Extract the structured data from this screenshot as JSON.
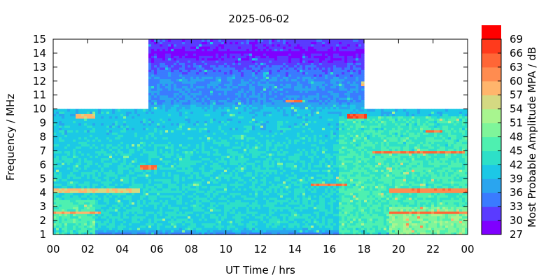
{
  "chart_data": {
    "type": "heatmap",
    "title": "2025-06-02",
    "xlabel": "UT Time / hrs",
    "ylabel": "Frequency / MHz",
    "xlim": [
      0,
      24
    ],
    "ylim": [
      1,
      15
    ],
    "x_ticks": [
      "00",
      "02",
      "04",
      "06",
      "08",
      "10",
      "12",
      "14",
      "16",
      "18",
      "20",
      "22",
      "00"
    ],
    "y_ticks": [
      "1",
      "2",
      "3",
      "4",
      "5",
      "6",
      "7",
      "8",
      "9",
      "10",
      "11",
      "12",
      "13",
      "14",
      "15"
    ],
    "colorbar": {
      "label": "Most Probable Amplitude MPA / dB",
      "ticks": [
        "27",
        "30",
        "33",
        "36",
        "39",
        "42",
        "45",
        "48",
        "51",
        "54",
        "57",
        "60",
        "63",
        "66",
        "69"
      ],
      "range": [
        27,
        69
      ],
      "step": 3,
      "colors": [
        "#7f00ff",
        "#5a3bff",
        "#3a7bff",
        "#2aa5ef",
        "#1cc8e6",
        "#2de0c8",
        "#4ef0b0",
        "#7ff59a",
        "#a8f58f",
        "#d4d982",
        "#ffb56c",
        "#ff8c50",
        "#ff6636",
        "#ff3a1c",
        "#ff0000"
      ]
    },
    "coverage": [
      {
        "x": [
          0,
          5.5
        ],
        "y": [
          1,
          10
        ]
      },
      {
        "x": [
          5.5,
          18
        ],
        "y": [
          1,
          15
        ]
      },
      {
        "x": [
          18,
          24
        ],
        "y": [
          1,
          10
        ]
      }
    ],
    "frequency_profile_db": [
      {
        "f": 1.0,
        "v": 34
      },
      {
        "f": 1.5,
        "v": 42
      },
      {
        "f": 2.5,
        "v": 42
      },
      {
        "f": 4.0,
        "v": 42
      },
      {
        "f": 6.0,
        "v": 42
      },
      {
        "f": 8.0,
        "v": 41
      },
      {
        "f": 10.0,
        "v": 40
      },
      {
        "f": 10.5,
        "v": 36
      },
      {
        "f": 12.0,
        "v": 36
      },
      {
        "f": 13.0,
        "v": 33
      },
      {
        "f": 14.0,
        "v": 29
      },
      {
        "f": 14.5,
        "v": 31
      },
      {
        "f": 15.0,
        "v": 32
      }
    ],
    "enhanced_regions": [
      {
        "x": [
          0,
          2.5
        ],
        "y": [
          1,
          3.5
        ],
        "v": 48
      },
      {
        "x": [
          16.5,
          24
        ],
        "y": [
          1,
          9.5
        ],
        "v": 47
      },
      {
        "x": [
          19.5,
          24
        ],
        "y": [
          1,
          3
        ],
        "v": 52
      }
    ],
    "bands": [
      {
        "x": [
          0,
          2.8
        ],
        "f": 2.55,
        "v": 60
      },
      {
        "x": [
          19.5,
          24
        ],
        "f": 2.55,
        "v": 64
      },
      {
        "x": [
          0,
          5
        ],
        "f": 4.2,
        "v": 57
      },
      {
        "x": [
          19.5,
          24
        ],
        "f": 4.2,
        "v": 62
      },
      {
        "x": [
          15,
          17
        ],
        "f": 4.55,
        "v": 63
      },
      {
        "x": [
          17.0,
          18.1
        ],
        "f": 9.5,
        "v": 66
      },
      {
        "x": [
          1.3,
          2.4
        ],
        "f": 9.5,
        "v": 58
      },
      {
        "x": [
          5.0,
          6.0
        ],
        "f": 5.85,
        "v": 63
      },
      {
        "x": [
          18.5,
          23.8
        ],
        "f": 6.9,
        "v": 63
      },
      {
        "x": [
          17.8,
          18.0
        ],
        "f": 11.8,
        "v": 58
      },
      {
        "x": [
          13.5,
          14.5
        ],
        "f": 10.6,
        "v": 63
      },
      {
        "x": [
          21.5,
          22.5
        ],
        "f": 8.4,
        "v": 64
      },
      {
        "x": [
          11.5,
          14.5
        ],
        "f": 13.9,
        "v": 29
      },
      {
        "x": [
          5.6,
          17.8
        ],
        "f": 14.1,
        "v": 28
      }
    ]
  }
}
